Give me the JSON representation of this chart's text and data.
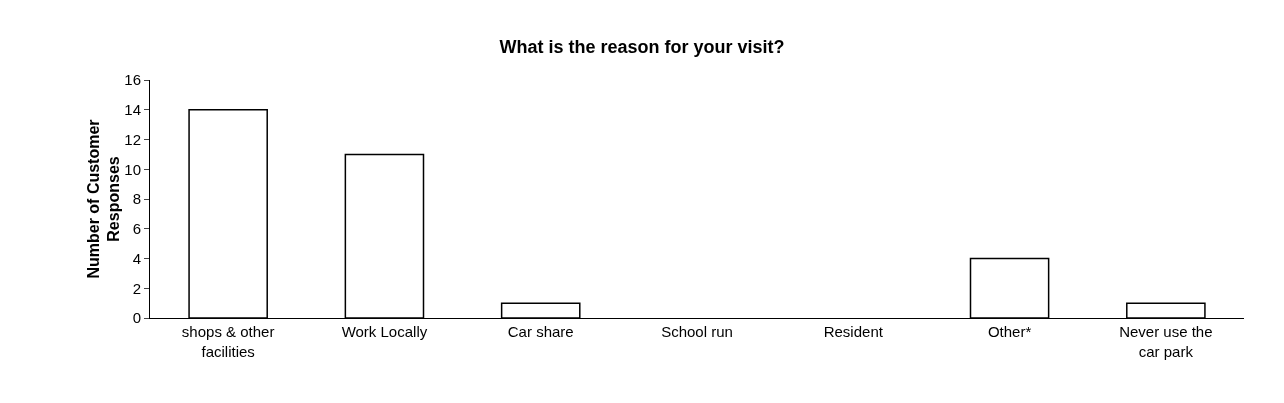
{
  "chart_data": {
    "type": "bar",
    "title": "What is the reason for your visit?",
    "ylabel": "Number of Customer Responses",
    "categories": [
      "shops & other facilities",
      "Work Locally",
      "Car share",
      "School run",
      "Resident",
      "Other*",
      "Never use the car park"
    ],
    "values": [
      14,
      11,
      1,
      0,
      0,
      4,
      1
    ],
    "color": "#ffffff",
    "ylim": [
      0,
      16
    ],
    "yticks": [
      0,
      2,
      4,
      6,
      8,
      10,
      12,
      14,
      16
    ],
    "grid": false
  }
}
